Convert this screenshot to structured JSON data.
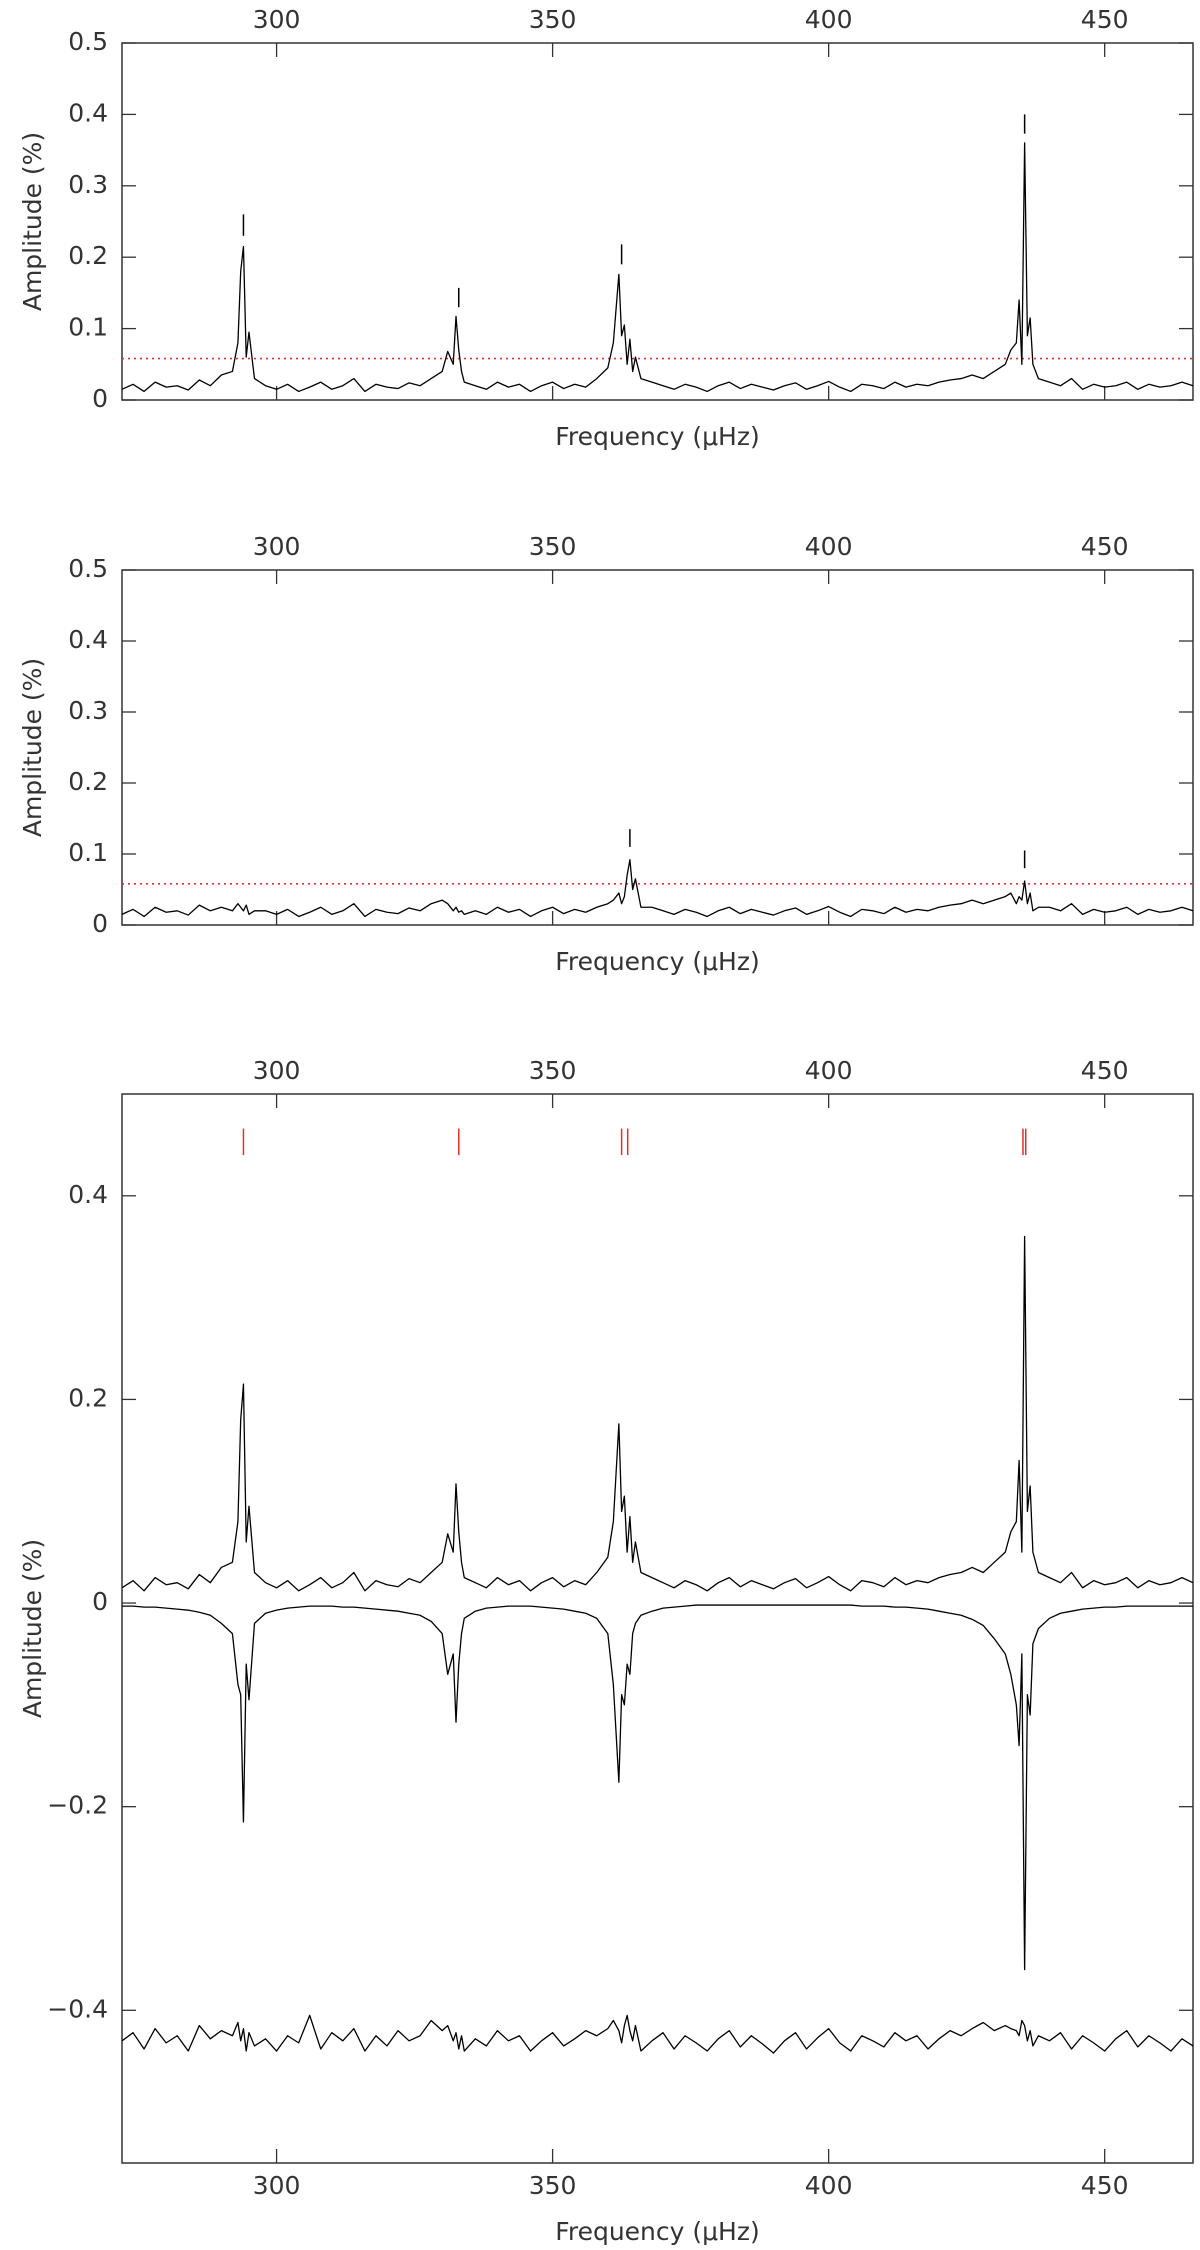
{
  "chart_data": [
    {
      "type": "line",
      "xlabel": "Frequency (μHz)",
      "ylabel": "Amplitude (%)",
      "xlim": [
        272,
        466
      ],
      "ylim": [
        0,
        0.5
      ],
      "xticks": [
        300,
        350,
        400,
        450
      ],
      "yticks": [
        0,
        0.1,
        0.2,
        0.3,
        0.4,
        0.5
      ],
      "xtick_label_sides": [
        "top"
      ],
      "grid": false,
      "x": [
        272,
        274,
        276,
        278,
        280,
        282,
        284,
        286,
        288,
        290,
        292,
        293,
        293.5,
        294,
        294.5,
        295,
        296,
        298,
        300,
        302,
        304,
        306,
        308,
        310,
        312,
        314,
        316,
        318,
        320,
        322,
        324,
        326,
        328,
        330,
        331,
        332,
        332.5,
        333,
        333.5,
        334,
        336,
        338,
        340,
        342,
        344,
        346,
        348,
        350,
        352,
        354,
        356,
        358,
        360,
        361,
        362,
        362.5,
        363,
        363.5,
        364,
        364.5,
        365,
        366,
        368,
        370,
        372,
        374,
        376,
        378,
        380,
        382,
        384,
        386,
        388,
        390,
        392,
        394,
        396,
        398,
        400,
        402,
        404,
        406,
        408,
        410,
        412,
        414,
        416,
        418,
        420,
        422,
        424,
        426,
        428,
        430,
        432,
        433,
        434,
        434.5,
        435,
        435.5,
        436,
        436.5,
        437,
        438,
        440,
        442,
        444,
        446,
        448,
        450,
        452,
        454,
        456,
        458,
        460,
        462,
        464,
        466
      ],
      "series": [
        {
          "color": "#000000",
          "values": [
            0.015,
            0.022,
            0.012,
            0.025,
            0.018,
            0.02,
            0.014,
            0.028,
            0.02,
            0.035,
            0.04,
            0.08,
            0.18,
            0.215,
            0.06,
            0.095,
            0.03,
            0.02,
            0.015,
            0.022,
            0.012,
            0.018,
            0.025,
            0.015,
            0.02,
            0.03,
            0.012,
            0.022,
            0.018,
            0.016,
            0.024,
            0.02,
            0.03,
            0.04,
            0.068,
            0.05,
            0.117,
            0.07,
            0.04,
            0.025,
            0.02,
            0.015,
            0.025,
            0.018,
            0.022,
            0.012,
            0.02,
            0.025,
            0.016,
            0.022,
            0.018,
            0.03,
            0.045,
            0.08,
            0.176,
            0.09,
            0.105,
            0.05,
            0.085,
            0.04,
            0.06,
            0.03,
            0.025,
            0.02,
            0.015,
            0.022,
            0.018,
            0.012,
            0.02,
            0.025,
            0.016,
            0.022,
            0.018,
            0.014,
            0.02,
            0.024,
            0.015,
            0.02,
            0.026,
            0.018,
            0.012,
            0.022,
            0.02,
            0.016,
            0.025,
            0.018,
            0.022,
            0.02,
            0.025,
            0.028,
            0.03,
            0.035,
            0.03,
            0.04,
            0.05,
            0.07,
            0.08,
            0.14,
            0.05,
            0.36,
            0.09,
            0.115,
            0.05,
            0.03,
            0.025,
            0.02,
            0.03,
            0.015,
            0.022,
            0.018,
            0.02,
            0.025,
            0.015,
            0.022,
            0.018,
            0.02,
            0.025,
            0.02
          ]
        }
      ],
      "markers": {
        "color": "#000000",
        "items": [
          {
            "x": 294,
            "y": [
              0.23,
              0.26
            ]
          },
          {
            "x": 333,
            "y": [
              0.13,
              0.157
            ]
          },
          {
            "x": 362.5,
            "y": [
              0.19,
              0.218
            ]
          },
          {
            "x": 435.5,
            "y": [
              0.373,
              0.4
            ]
          }
        ]
      },
      "threshold": {
        "value": 0.058,
        "color": "#e03030"
      }
    },
    {
      "type": "line",
      "xlabel": "Frequency (μHz)",
      "ylabel": "Amplitude (%)",
      "xlim": [
        272,
        466
      ],
      "ylim": [
        0,
        0.5
      ],
      "xticks": [
        300,
        350,
        400,
        450
      ],
      "yticks": [
        0,
        0.1,
        0.2,
        0.3,
        0.4,
        0.5
      ],
      "xtick_label_sides": [
        "top"
      ],
      "grid": false,
      "x": [
        272,
        274,
        276,
        278,
        280,
        282,
        284,
        286,
        288,
        290,
        292,
        293,
        293.5,
        294,
        294.5,
        295,
        296,
        298,
        300,
        302,
        304,
        306,
        308,
        310,
        312,
        314,
        316,
        318,
        320,
        322,
        324,
        326,
        328,
        330,
        331,
        332,
        332.5,
        333,
        333.5,
        334,
        336,
        338,
        340,
        342,
        344,
        346,
        348,
        350,
        352,
        354,
        356,
        358,
        360,
        361,
        362,
        362.5,
        363,
        363.5,
        364,
        364.5,
        365,
        366,
        368,
        370,
        372,
        374,
        376,
        378,
        380,
        382,
        384,
        386,
        388,
        390,
        392,
        394,
        396,
        398,
        400,
        402,
        404,
        406,
        408,
        410,
        412,
        414,
        416,
        418,
        420,
        422,
        424,
        426,
        428,
        430,
        432,
        433,
        434,
        434.5,
        435,
        435.5,
        436,
        436.5,
        437,
        438,
        440,
        442,
        444,
        446,
        448,
        450,
        452,
        454,
        456,
        458,
        460,
        462,
        464,
        466
      ],
      "series": [
        {
          "color": "#000000",
          "values": [
            0.015,
            0.022,
            0.012,
            0.025,
            0.018,
            0.02,
            0.014,
            0.028,
            0.02,
            0.025,
            0.02,
            0.03,
            0.025,
            0.02,
            0.028,
            0.015,
            0.02,
            0.02,
            0.015,
            0.022,
            0.012,
            0.018,
            0.025,
            0.015,
            0.02,
            0.03,
            0.012,
            0.022,
            0.018,
            0.016,
            0.024,
            0.02,
            0.03,
            0.035,
            0.03,
            0.02,
            0.025,
            0.018,
            0.02,
            0.015,
            0.02,
            0.015,
            0.025,
            0.018,
            0.022,
            0.012,
            0.02,
            0.025,
            0.016,
            0.022,
            0.018,
            0.025,
            0.03,
            0.035,
            0.045,
            0.03,
            0.04,
            0.07,
            0.092,
            0.05,
            0.065,
            0.025,
            0.025,
            0.02,
            0.015,
            0.022,
            0.018,
            0.012,
            0.02,
            0.025,
            0.016,
            0.022,
            0.018,
            0.014,
            0.02,
            0.024,
            0.015,
            0.02,
            0.026,
            0.018,
            0.012,
            0.022,
            0.02,
            0.016,
            0.025,
            0.018,
            0.022,
            0.02,
            0.025,
            0.028,
            0.03,
            0.035,
            0.03,
            0.035,
            0.04,
            0.045,
            0.03,
            0.04,
            0.035,
            0.062,
            0.03,
            0.045,
            0.02,
            0.025,
            0.025,
            0.02,
            0.03,
            0.015,
            0.022,
            0.018,
            0.02,
            0.025,
            0.015,
            0.022,
            0.018,
            0.02,
            0.025,
            0.02
          ]
        }
      ],
      "markers": {
        "color": "#000000",
        "items": [
          {
            "x": 364,
            "y": [
              0.11,
              0.135
            ]
          },
          {
            "x": 435.5,
            "y": [
              0.08,
              0.105
            ]
          }
        ]
      },
      "threshold": {
        "value": 0.058,
        "color": "#e03030"
      }
    },
    {
      "type": "line",
      "xlabel": "Frequency (μHz)",
      "ylabel": "Amplitude (%)",
      "xlim": [
        272,
        466
      ],
      "ylim": [
        -0.55,
        0.5
      ],
      "xticks": [
        300,
        350,
        400,
        450
      ],
      "yticks": [
        {
          "value": -0.4,
          "label": "−0.4"
        },
        {
          "value": -0.2,
          "label": "−0.2"
        },
        0,
        0.2,
        0.4
      ],
      "xtick_label_sides": [
        "top",
        "bottom"
      ],
      "grid": false,
      "x": [
        272,
        274,
        276,
        278,
        280,
        282,
        284,
        286,
        288,
        290,
        292,
        293,
        293.5,
        294,
        294.5,
        295,
        296,
        298,
        300,
        302,
        304,
        306,
        308,
        310,
        312,
        314,
        316,
        318,
        320,
        322,
        324,
        326,
        328,
        330,
        331,
        332,
        332.5,
        333,
        333.5,
        334,
        336,
        338,
        340,
        342,
        344,
        346,
        348,
        350,
        352,
        354,
        356,
        358,
        360,
        361,
        362,
        362.5,
        363,
        363.5,
        364,
        364.5,
        365,
        366,
        368,
        370,
        372,
        374,
        376,
        378,
        380,
        382,
        384,
        386,
        388,
        390,
        392,
        394,
        396,
        398,
        400,
        402,
        404,
        406,
        408,
        410,
        412,
        414,
        416,
        418,
        420,
        422,
        424,
        426,
        428,
        430,
        432,
        433,
        434,
        434.5,
        435,
        435.5,
        436,
        436.5,
        437,
        438,
        440,
        442,
        444,
        446,
        448,
        450,
        452,
        454,
        456,
        458,
        460,
        462,
        464,
        466
      ],
      "series": [
        {
          "color": "#000000",
          "values": [
            0.015,
            0.022,
            0.012,
            0.025,
            0.018,
            0.02,
            0.014,
            0.028,
            0.02,
            0.035,
            0.04,
            0.08,
            0.18,
            0.215,
            0.06,
            0.095,
            0.03,
            0.02,
            0.015,
            0.022,
            0.012,
            0.018,
            0.025,
            0.015,
            0.02,
            0.03,
            0.012,
            0.022,
            0.018,
            0.016,
            0.024,
            0.02,
            0.03,
            0.04,
            0.068,
            0.05,
            0.117,
            0.07,
            0.04,
            0.025,
            0.02,
            0.015,
            0.025,
            0.018,
            0.022,
            0.012,
            0.02,
            0.025,
            0.016,
            0.022,
            0.018,
            0.03,
            0.045,
            0.08,
            0.176,
            0.09,
            0.105,
            0.05,
            0.085,
            0.04,
            0.06,
            0.03,
            0.025,
            0.02,
            0.015,
            0.022,
            0.018,
            0.012,
            0.02,
            0.025,
            0.016,
            0.022,
            0.018,
            0.014,
            0.02,
            0.024,
            0.015,
            0.02,
            0.026,
            0.018,
            0.012,
            0.022,
            0.02,
            0.016,
            0.025,
            0.018,
            0.022,
            0.02,
            0.025,
            0.028,
            0.03,
            0.035,
            0.03,
            0.04,
            0.05,
            0.07,
            0.08,
            0.14,
            0.05,
            0.36,
            0.09,
            0.115,
            0.05,
            0.03,
            0.025,
            0.02,
            0.03,
            0.015,
            0.022,
            0.018,
            0.02,
            0.025,
            0.015,
            0.022,
            0.018,
            0.02,
            0.025,
            0.02
          ]
        },
        {
          "color": "#000000",
          "values": [
            -0.003,
            -0.003,
            -0.004,
            -0.004,
            -0.005,
            -0.006,
            -0.007,
            -0.009,
            -0.012,
            -0.02,
            -0.03,
            -0.08,
            -0.09,
            -0.215,
            -0.06,
            -0.095,
            -0.02,
            -0.01,
            -0.007,
            -0.005,
            -0.004,
            -0.003,
            -0.003,
            -0.003,
            -0.004,
            -0.004,
            -0.005,
            -0.006,
            -0.007,
            -0.008,
            -0.01,
            -0.012,
            -0.018,
            -0.03,
            -0.07,
            -0.05,
            -0.117,
            -0.06,
            -0.03,
            -0.015,
            -0.008,
            -0.005,
            -0.004,
            -0.003,
            -0.003,
            -0.003,
            -0.004,
            -0.005,
            -0.006,
            -0.008,
            -0.01,
            -0.015,
            -0.03,
            -0.08,
            -0.176,
            -0.09,
            -0.1,
            -0.06,
            -0.07,
            -0.03,
            -0.02,
            -0.012,
            -0.008,
            -0.005,
            -0.004,
            -0.003,
            -0.002,
            -0.002,
            -0.002,
            -0.002,
            -0.002,
            -0.002,
            -0.002,
            -0.002,
            -0.002,
            -0.002,
            -0.002,
            -0.002,
            -0.002,
            -0.002,
            -0.002,
            -0.003,
            -0.003,
            -0.003,
            -0.004,
            -0.004,
            -0.005,
            -0.006,
            -0.008,
            -0.01,
            -0.012,
            -0.016,
            -0.022,
            -0.035,
            -0.05,
            -0.07,
            -0.1,
            -0.14,
            -0.05,
            -0.36,
            -0.09,
            -0.11,
            -0.04,
            -0.025,
            -0.015,
            -0.01,
            -0.008,
            -0.006,
            -0.005,
            -0.004,
            -0.004,
            -0.003,
            -0.003,
            -0.003,
            -0.003,
            -0.003,
            -0.003,
            -0.003
          ]
        },
        {
          "color": "#000000",
          "values": [
            -0.43,
            -0.422,
            -0.438,
            -0.418,
            -0.432,
            -0.425,
            -0.44,
            -0.415,
            -0.428,
            -0.42,
            -0.425,
            -0.412,
            -0.43,
            -0.418,
            -0.44,
            -0.422,
            -0.435,
            -0.428,
            -0.44,
            -0.425,
            -0.432,
            -0.405,
            -0.438,
            -0.422,
            -0.43,
            -0.418,
            -0.44,
            -0.425,
            -0.435,
            -0.42,
            -0.43,
            -0.425,
            -0.41,
            -0.42,
            -0.415,
            -0.43,
            -0.422,
            -0.438,
            -0.425,
            -0.44,
            -0.428,
            -0.435,
            -0.42,
            -0.43,
            -0.425,
            -0.44,
            -0.43,
            -0.422,
            -0.435,
            -0.428,
            -0.42,
            -0.425,
            -0.418,
            -0.41,
            -0.42,
            -0.432,
            -0.415,
            -0.405,
            -0.42,
            -0.43,
            -0.415,
            -0.44,
            -0.43,
            -0.422,
            -0.438,
            -0.425,
            -0.432,
            -0.44,
            -0.428,
            -0.42,
            -0.436,
            -0.425,
            -0.433,
            -0.442,
            -0.43,
            -0.422,
            -0.438,
            -0.427,
            -0.418,
            -0.432,
            -0.44,
            -0.425,
            -0.43,
            -0.436,
            -0.422,
            -0.43,
            -0.425,
            -0.438,
            -0.428,
            -0.42,
            -0.425,
            -0.418,
            -0.412,
            -0.42,
            -0.415,
            -0.418,
            -0.42,
            -0.425,
            -0.41,
            -0.415,
            -0.43,
            -0.42,
            -0.435,
            -0.425,
            -0.43,
            -0.422,
            -0.438,
            -0.425,
            -0.432,
            -0.44,
            -0.428,
            -0.42,
            -0.436,
            -0.425,
            -0.432,
            -0.44,
            -0.428,
            -0.435
          ]
        }
      ],
      "markers": {
        "color": "#e03030",
        "items": [
          {
            "x": 294,
            "y": [
              0.44,
              0.466
            ]
          },
          {
            "x": 333,
            "y": [
              0.44,
              0.466
            ]
          },
          {
            "x": 362.5,
            "y": [
              0.44,
              0.466
            ]
          },
          {
            "x": 363.6,
            "y": [
              0.44,
              0.466
            ]
          },
          {
            "x": 435.2,
            "y": [
              0.44,
              0.466
            ]
          },
          {
            "x": 435.7,
            "y": [
              0.44,
              0.466
            ]
          }
        ]
      }
    }
  ]
}
